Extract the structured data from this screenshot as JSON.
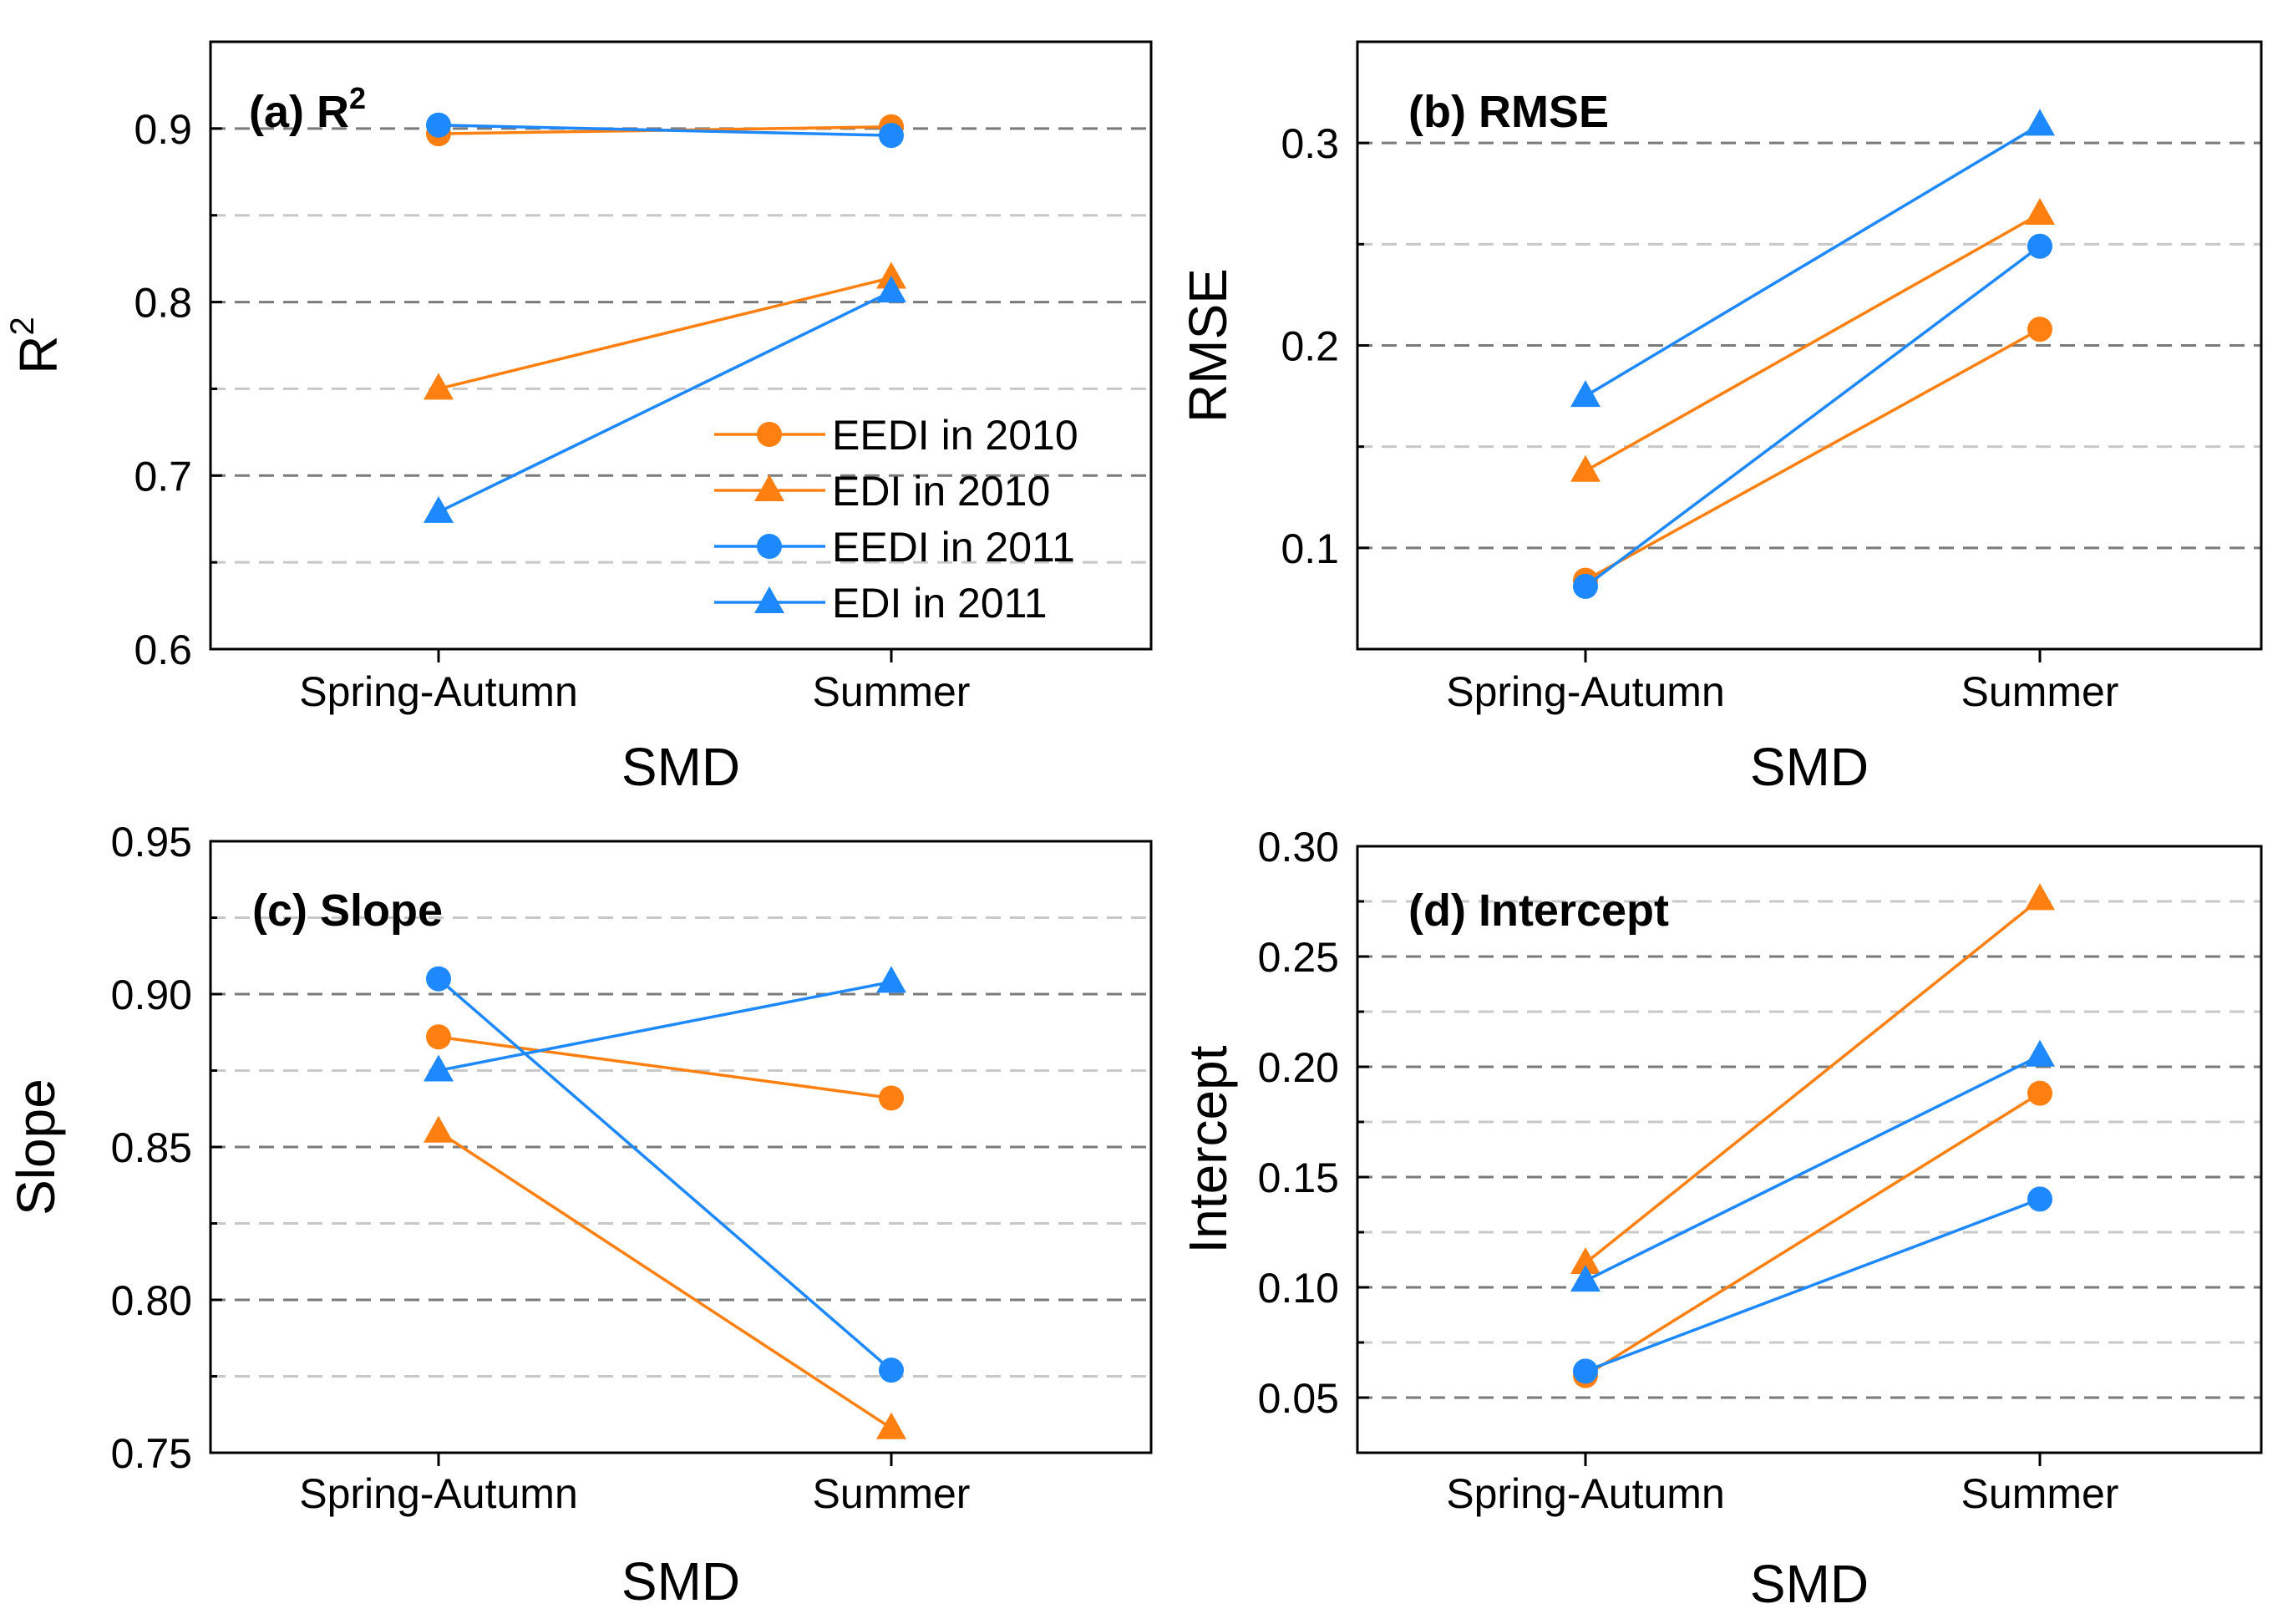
{
  "colors": {
    "orange": "#ff8010",
    "blue": "#1e88ff"
  },
  "legend": [
    {
      "label": "EEDI in 2010",
      "color": "#ff8010",
      "marker": "circle"
    },
    {
      "label": "EDI in 2010",
      "color": "#ff8010",
      "marker": "triangle"
    },
    {
      "label": "EEDI in 2011",
      "color": "#1e88ff",
      "marker": "circle"
    },
    {
      "label": "EDI in 2011",
      "color": "#1e88ff",
      "marker": "triangle"
    }
  ],
  "chart_data": [
    {
      "type": "line",
      "panel": "a",
      "title": "(a) R",
      "title_sup": "2",
      "ylabel": "R",
      "ylabel_sup": "2",
      "xlabel": "SMD",
      "categories": [
        "Spring-Autumn",
        "Summer"
      ],
      "ylim": [
        0.6,
        0.95
      ],
      "yticks": [
        0.6,
        0.7,
        0.8,
        0.9
      ],
      "ytick_labels": [
        "0.6",
        "0.7",
        "0.8",
        "0.9"
      ],
      "major_grid": [
        0.7,
        0.8,
        0.9
      ],
      "minor_grid": [
        0.65,
        0.75,
        0.85
      ],
      "legend_position": "lower-right",
      "series": [
        {
          "name": "EEDI in 2010",
          "values": [
            0.897,
            0.901
          ]
        },
        {
          "name": "EDI in 2010",
          "values": [
            0.75,
            0.814
          ]
        },
        {
          "name": "EEDI in 2011",
          "values": [
            0.902,
            0.896
          ]
        },
        {
          "name": "EDI in 2011",
          "values": [
            0.679,
            0.806
          ]
        }
      ]
    },
    {
      "type": "line",
      "panel": "b",
      "title": "(b) RMSE",
      "ylabel": "RMSE",
      "xlabel": "SMD",
      "categories": [
        "Spring-Autumn",
        "Summer"
      ],
      "ylim": [
        0.05,
        0.35
      ],
      "yticks": [
        0.1,
        0.2,
        0.3
      ],
      "ytick_labels": [
        "0.1",
        "0.2",
        "0.3"
      ],
      "major_grid": [
        0.1,
        0.2,
        0.3
      ],
      "minor_grid": [
        0.15,
        0.25
      ],
      "series": [
        {
          "name": "EEDI in 2010",
          "values": [
            0.084,
            0.208
          ]
        },
        {
          "name": "EDI in 2010",
          "values": [
            0.138,
            0.265
          ]
        },
        {
          "name": "EEDI in 2011",
          "values": [
            0.081,
            0.249
          ]
        },
        {
          "name": "EDI in 2011",
          "values": [
            0.175,
            0.309
          ]
        }
      ]
    },
    {
      "type": "line",
      "panel": "c",
      "title": "(c) Slope",
      "ylabel": "Slope",
      "xlabel": "SMD",
      "categories": [
        "Spring-Autumn",
        "Summer"
      ],
      "ylim": [
        0.75,
        0.95
      ],
      "yticks": [
        0.75,
        0.8,
        0.85,
        0.9,
        0.95
      ],
      "ytick_labels": [
        "0.75",
        "0.80",
        "0.85",
        "0.90",
        "0.95"
      ],
      "major_grid": [
        0.8,
        0.85,
        0.9
      ],
      "minor_grid": [
        0.775,
        0.825,
        0.875,
        0.925
      ],
      "series": [
        {
          "name": "EEDI in 2010",
          "values": [
            0.886,
            0.866
          ]
        },
        {
          "name": "EDI in 2010",
          "values": [
            0.855,
            0.758
          ]
        },
        {
          "name": "EEDI in 2011",
          "values": [
            0.905,
            0.777
          ]
        },
        {
          "name": "EDI in 2011",
          "values": [
            0.875,
            0.904
          ]
        }
      ]
    },
    {
      "type": "line",
      "panel": "d",
      "title": "(d) Intercept",
      "ylabel": "Intercept",
      "xlabel": "SMD",
      "categories": [
        "Spring-Autumn",
        "Summer"
      ],
      "ylim": [
        0.025,
        0.3
      ],
      "yticks": [
        0.05,
        0.1,
        0.15,
        0.2,
        0.25,
        0.3
      ],
      "ytick_labels": [
        "0.05",
        "0.10",
        "0.15",
        "0.20",
        "0.25",
        "0.30"
      ],
      "major_grid": [
        0.05,
        0.1,
        0.15,
        0.2,
        0.25
      ],
      "minor_grid": [
        0.075,
        0.125,
        0.175,
        0.225,
        0.275
      ],
      "series": [
        {
          "name": "EEDI in 2010",
          "values": [
            0.06,
            0.188
          ]
        },
        {
          "name": "EDI in 2010",
          "values": [
            0.111,
            0.276
          ]
        },
        {
          "name": "EEDI in 2011",
          "values": [
            0.062,
            0.14
          ]
        },
        {
          "name": "EDI in 2011",
          "values": [
            0.103,
            0.205
          ]
        }
      ]
    }
  ]
}
